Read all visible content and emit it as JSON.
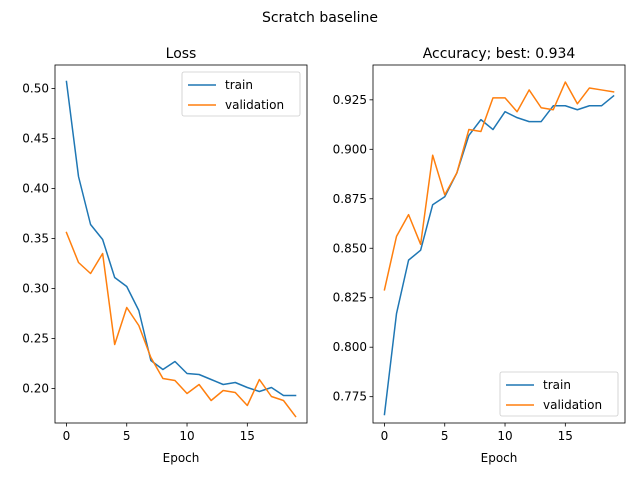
{
  "suptitle": "Scratch baseline",
  "chart_data": [
    {
      "type": "line",
      "title": "Loss",
      "xlabel": "Epoch",
      "ylabel": "",
      "x": [
        0,
        1,
        2,
        3,
        4,
        5,
        6,
        7,
        8,
        9,
        10,
        11,
        12,
        13,
        14,
        15,
        16,
        17,
        18,
        19
      ],
      "xlim": [
        -0.95,
        19.95
      ],
      "ylim": [
        0.1655,
        0.5235
      ],
      "xticks": [
        0,
        5,
        10,
        15
      ],
      "yticks": [
        0.2,
        0.25,
        0.3,
        0.35,
        0.4,
        0.45,
        0.5
      ],
      "ytick_labels": [
        "0.20",
        "0.25",
        "0.30",
        "0.35",
        "0.40",
        "0.45",
        "0.50"
      ],
      "legend_loc": "upper right",
      "series": [
        {
          "name": "train",
          "color": "#1f77b4",
          "values": [
            0.507,
            0.412,
            0.364,
            0.349,
            0.311,
            0.302,
            0.278,
            0.228,
            0.219,
            0.227,
            0.215,
            0.214,
            0.209,
            0.204,
            0.206,
            0.201,
            0.197,
            0.201,
            0.193,
            0.193
          ]
        },
        {
          "name": "validation",
          "color": "#ff7f0e",
          "values": [
            0.356,
            0.326,
            0.315,
            0.335,
            0.244,
            0.281,
            0.263,
            0.231,
            0.21,
            0.208,
            0.195,
            0.204,
            0.188,
            0.198,
            0.196,
            0.183,
            0.209,
            0.192,
            0.188,
            0.172
          ]
        }
      ]
    },
    {
      "type": "line",
      "title": "Accuracy; best: 0.934",
      "xlabel": "Epoch",
      "ylabel": "",
      "x": [
        0,
        1,
        2,
        3,
        4,
        5,
        6,
        7,
        8,
        9,
        10,
        11,
        12,
        13,
        14,
        15,
        16,
        17,
        18,
        19
      ],
      "xlim": [
        -0.95,
        19.95
      ],
      "ylim": [
        0.7617,
        0.9426
      ],
      "xticks": [
        0,
        5,
        10,
        15
      ],
      "yticks": [
        0.775,
        0.8,
        0.825,
        0.85,
        0.875,
        0.9,
        0.925
      ],
      "ytick_labels": [
        "0.775",
        "0.800",
        "0.825",
        "0.850",
        "0.875",
        "0.900",
        "0.925"
      ],
      "legend_loc": "lower right",
      "series": [
        {
          "name": "train",
          "color": "#1f77b4",
          "values": [
            0.766,
            0.817,
            0.844,
            0.849,
            0.872,
            0.876,
            0.888,
            0.907,
            0.915,
            0.91,
            0.919,
            0.916,
            0.914,
            0.914,
            0.922,
            0.922,
            0.92,
            0.922,
            0.922,
            0.927
          ]
        },
        {
          "name": "validation",
          "color": "#ff7f0e",
          "values": [
            0.829,
            0.856,
            0.867,
            0.852,
            0.897,
            0.877,
            0.888,
            0.91,
            0.909,
            0.926,
            0.926,
            0.919,
            0.93,
            0.921,
            0.92,
            0.934,
            0.923,
            0.931,
            0.93,
            0.929
          ]
        }
      ]
    }
  ]
}
